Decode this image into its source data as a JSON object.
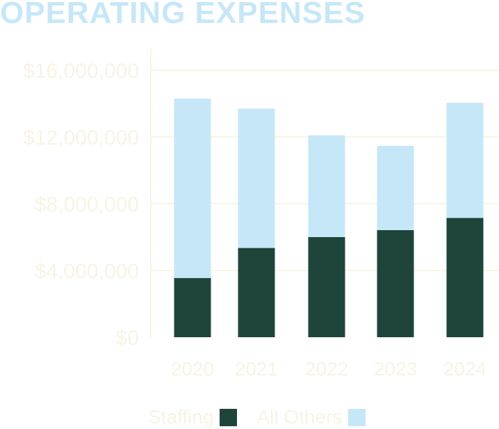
{
  "chart_data": {
    "type": "bar",
    "stacked": true,
    "title": "OPERATING EXPENSES",
    "xlabel": "",
    "ylabel": "",
    "categories": [
      "2020",
      "2021",
      "2022",
      "2023",
      "2024"
    ],
    "series": [
      {
        "name": "Staffing",
        "color": "#1f453b",
        "values": [
          3550000,
          5350000,
          6000000,
          6420000,
          7150000
        ]
      },
      {
        "name": "All Others",
        "color": "#c6e7f7",
        "values": [
          10750000,
          8350000,
          6100000,
          5050000,
          6900000
        ]
      }
    ],
    "ylim": [
      0,
      16000000
    ],
    "yticks": [
      0,
      4000000,
      8000000,
      12000000,
      16000000
    ],
    "ytick_labels": [
      "$0",
      "$4,000,000",
      "$8,000,000",
      "$12,000,000",
      "$16,000,000"
    ],
    "grid": true,
    "legend_position": "bottom"
  },
  "colors": {
    "title": "#c6e7f7",
    "axis_text": "#f7f4e4",
    "grid": "#f5f1dc"
  }
}
